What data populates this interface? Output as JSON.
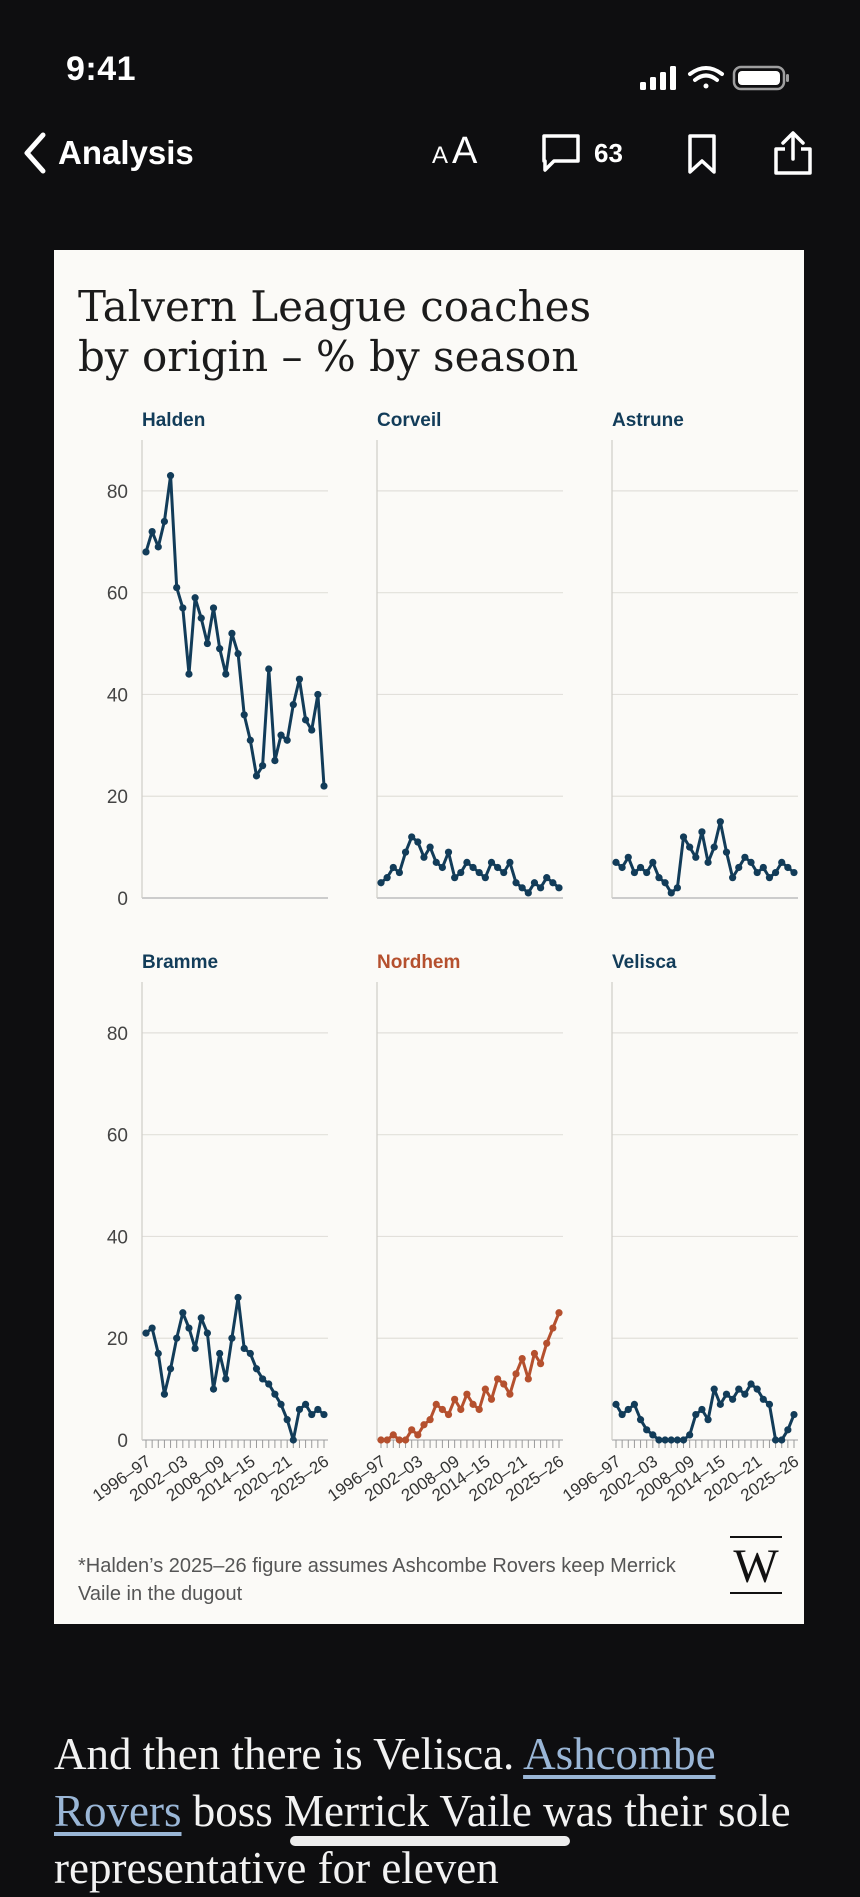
{
  "status": {
    "time": "9:41"
  },
  "nav": {
    "back_label": "Analysis",
    "text_size_small": "A",
    "text_size_large": "A",
    "comment_count": "63"
  },
  "chart_data": {
    "type": "line",
    "title": "Talvern League coaches by origin – % by season",
    "y_ticks": [
      0,
      20,
      40,
      60,
      80
    ],
    "ylim": [
      0,
      90
    ],
    "x_tick_labels": [
      "1996–97",
      "2002–03",
      "2008–09",
      "2014–15",
      "2020–21",
      "2025–26"
    ],
    "seasons_count": 30,
    "grid": true,
    "highlight_color": "#b5502e",
    "series_color": "#123c59",
    "panels": [
      {
        "name": "Halden",
        "highlight": false,
        "values": [
          68,
          72,
          69,
          74,
          83,
          61,
          57,
          44,
          59,
          55,
          50,
          57,
          49,
          44,
          52,
          48,
          36,
          31,
          24,
          26,
          45,
          27,
          32,
          31,
          38,
          43,
          35,
          33,
          40,
          22
        ]
      },
      {
        "name": "Corveil",
        "highlight": false,
        "values": [
          3,
          4,
          6,
          5,
          9,
          12,
          11,
          8,
          10,
          7,
          6,
          9,
          4,
          5,
          7,
          6,
          5,
          4,
          7,
          6,
          5,
          7,
          3,
          2,
          1,
          3,
          2,
          4,
          3,
          2
        ]
      },
      {
        "name": "Astrune",
        "highlight": false,
        "values": [
          7,
          6,
          8,
          5,
          6,
          5,
          7,
          4,
          3,
          1,
          2,
          12,
          10,
          8,
          13,
          7,
          10,
          15,
          9,
          4,
          6,
          8,
          7,
          5,
          6,
          4,
          5,
          7,
          6,
          5
        ]
      },
      {
        "name": "Bramme",
        "highlight": false,
        "values": [
          21,
          22,
          17,
          9,
          14,
          20,
          25,
          22,
          18,
          24,
          21,
          10,
          17,
          12,
          20,
          28,
          18,
          17,
          14,
          12,
          11,
          9,
          7,
          4,
          0,
          6,
          7,
          5,
          6,
          5
        ]
      },
      {
        "name": "Nordhem",
        "highlight": true,
        "values": [
          0,
          0,
          1,
          0,
          0,
          2,
          1,
          3,
          4,
          7,
          6,
          5,
          8,
          6,
          9,
          7,
          6,
          10,
          8,
          12,
          11,
          9,
          13,
          16,
          12,
          17,
          15,
          19,
          22,
          25
        ]
      },
      {
        "name": "Velisca",
        "highlight": false,
        "values": [
          7,
          5,
          6,
          7,
          4,
          2,
          1,
          0,
          0,
          0,
          0,
          0,
          1,
          5,
          6,
          4,
          10,
          7,
          9,
          8,
          10,
          9,
          11,
          10,
          8,
          7,
          0,
          0,
          2,
          5
        ]
      }
    ],
    "footnote": "*Halden’s 2025–26 figure assumes Ashcombe Rovers keep Merrick Vaile in the dugout",
    "brand_mark": "W"
  },
  "article": {
    "text_before_link": "And then there is Velisca. ",
    "link_text": "Ashcombe Rovers",
    "text_after_link": " boss Merrick Vaile was their sole representative for eleven"
  }
}
